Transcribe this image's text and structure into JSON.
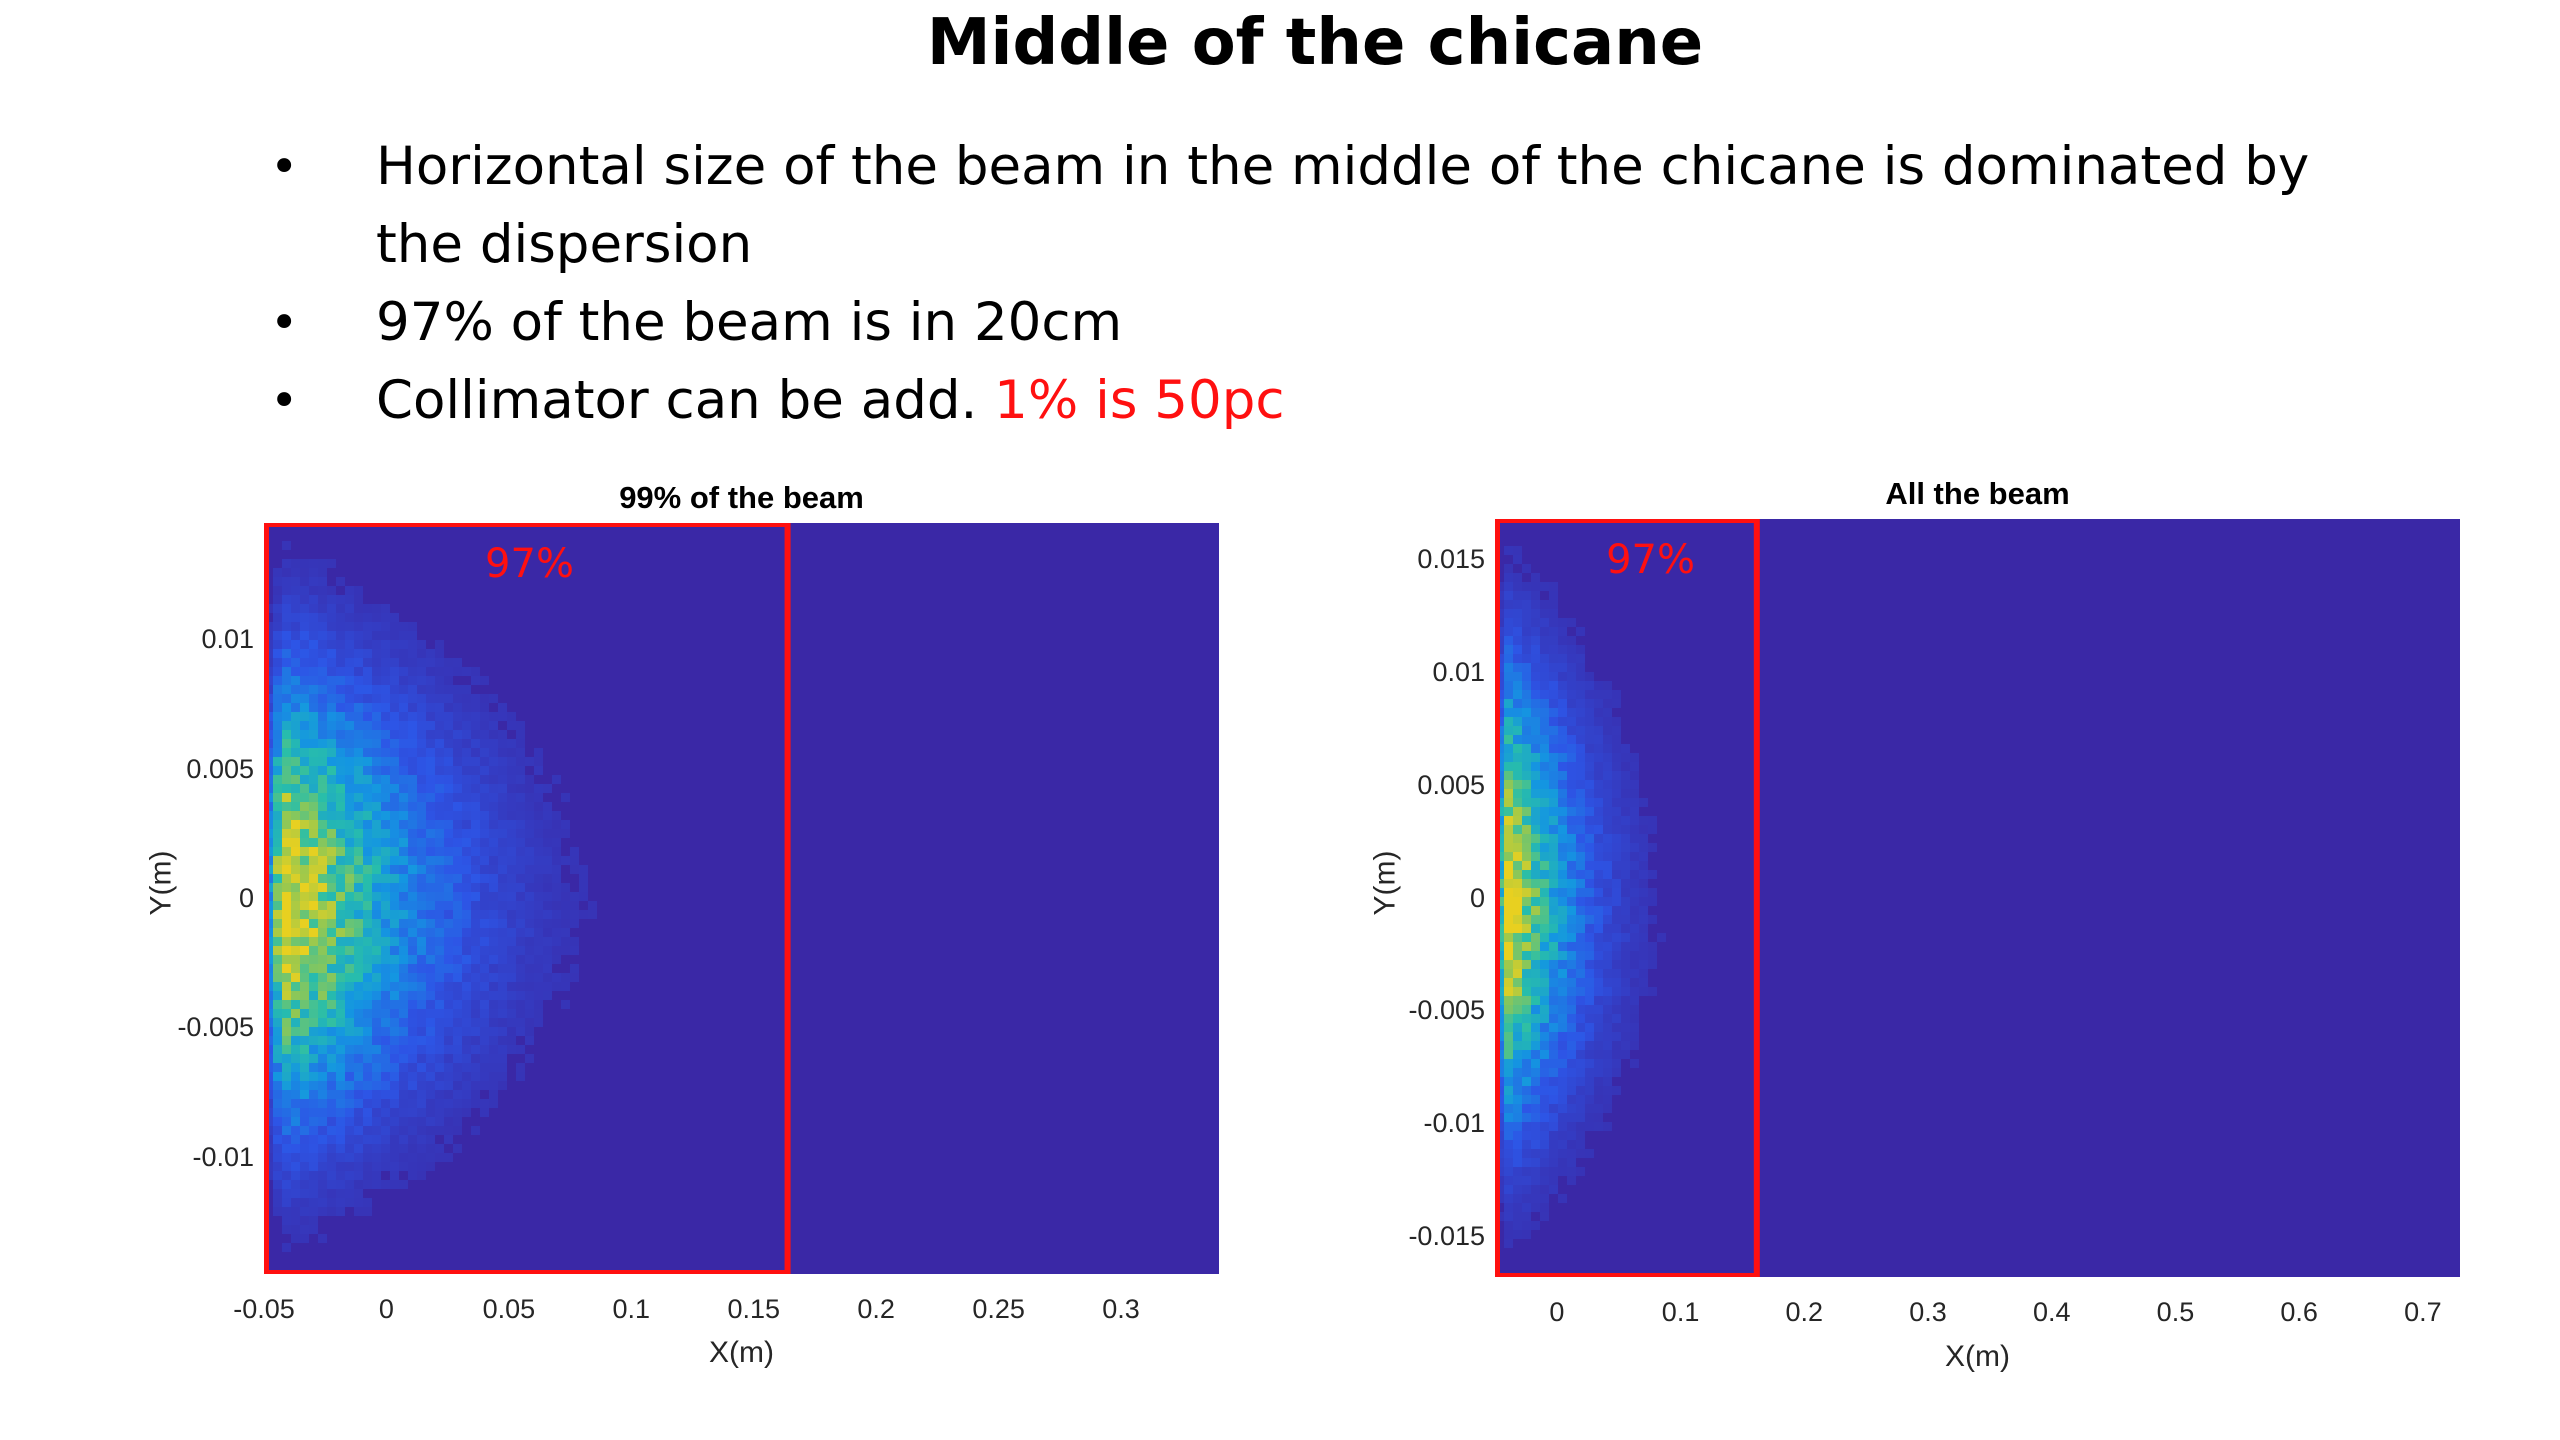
{
  "slide": {
    "title": "Middle of the chicane",
    "bullets": [
      {
        "text": "Horizontal size of the beam in the middle of the chicane is dominated by the dispersion",
        "highlight": ""
      },
      {
        "text": "97% of the beam is in 20cm",
        "highlight": ""
      },
      {
        "text": "Collimator can be add. ",
        "highlight": "1% is 50pc"
      }
    ]
  },
  "chart_data": [
    {
      "type": "heatmap",
      "title": "99% of the beam",
      "xlabel": "X(m)",
      "ylabel": "Y(m)",
      "xlim": [
        -0.05,
        0.34
      ],
      "ylim": [
        -0.0145,
        0.0145
      ],
      "xticks": [
        -0.05,
        0,
        0.05,
        0.1,
        0.15,
        0.2,
        0.25,
        0.3
      ],
      "xtick_labels": [
        "-0.05",
        "0",
        "0.05",
        "0.1",
        "0.15",
        "0.2",
        "0.25",
        "0.3"
      ],
      "yticks": [
        -0.01,
        -0.005,
        0,
        0.005,
        0.01
      ],
      "ytick_labels": [
        "-0.01",
        "-0.005",
        "0",
        "0.005",
        "0.01"
      ],
      "colors": {
        "background": "#3a28a6",
        "peak": "#e8d020"
      },
      "annotation": {
        "label": "97%",
        "x_range": [
          -0.05,
          0.163
        ],
        "color": "#ff1010"
      }
    },
    {
      "type": "heatmap",
      "title": "All the beam",
      "xlabel": "X(m)",
      "ylabel": "Y(m)",
      "xlim": [
        -0.05,
        0.73
      ],
      "ylim": [
        -0.0168,
        0.0168
      ],
      "xticks": [
        0,
        0.1,
        0.2,
        0.3,
        0.4,
        0.5,
        0.6,
        0.7
      ],
      "xtick_labels": [
        "0",
        "0.1",
        "0.2",
        "0.3",
        "0.4",
        "0.5",
        "0.6",
        "0.7"
      ],
      "yticks": [
        -0.015,
        -0.01,
        -0.005,
        0,
        0.005,
        0.01,
        0.015
      ],
      "ytick_labels": [
        "-0.015",
        "-0.01",
        "-0.005",
        "0",
        "0.005",
        "0.01",
        "0.015"
      ],
      "colors": {
        "background": "#3a28a6",
        "peak": "#e8d020"
      },
      "annotation": {
        "label": "97%",
        "x_range": [
          -0.05,
          0.16
        ],
        "color": "#ff1010"
      }
    }
  ]
}
